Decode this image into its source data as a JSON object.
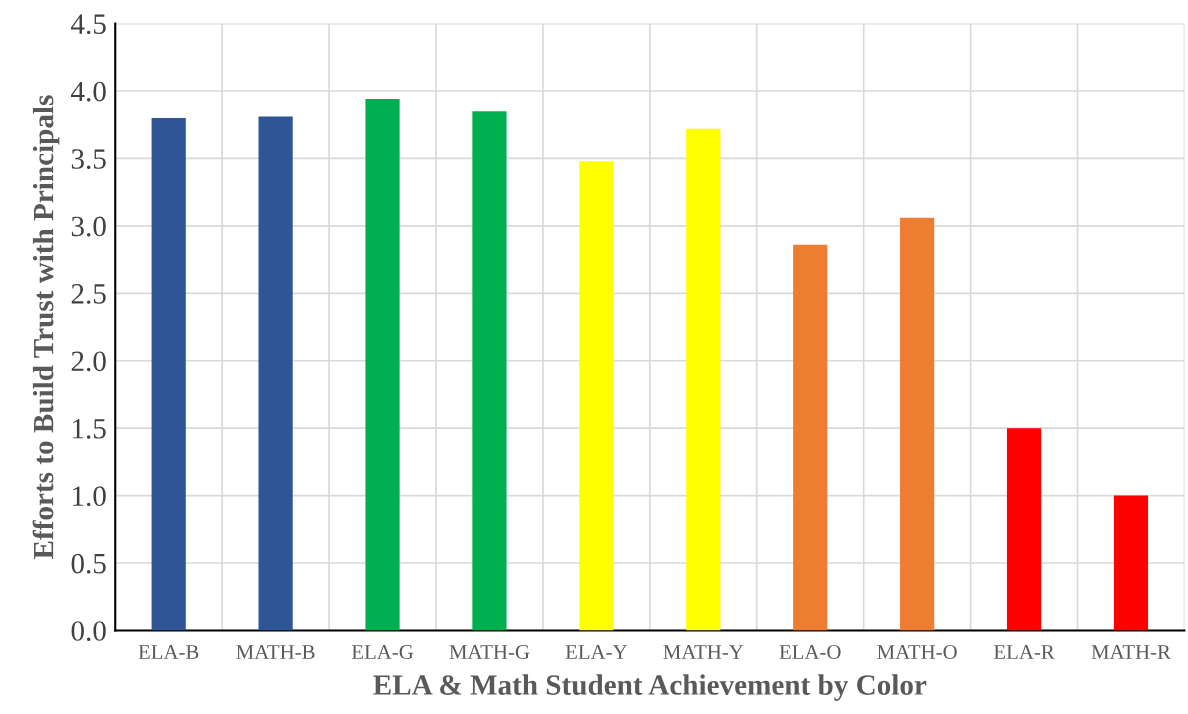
{
  "chart_data": {
    "type": "bar",
    "xlabel": "ELA & Math Student Achievement by Color",
    "ylabel": "Efforts to Build Trust with Principals",
    "categories": [
      "ELA-B",
      "MATH-B",
      "ELA-G",
      "MATH-G",
      "ELA-Y",
      "MATH-Y",
      "ELA-O",
      "MATH-O",
      "ELA-R",
      "MATH-R"
    ],
    "values": [
      3.8,
      3.81,
      3.94,
      3.85,
      3.48,
      3.72,
      2.86,
      3.06,
      1.5,
      1.0
    ],
    "colors": [
      "#2f5597",
      "#2f5597",
      "#00b050",
      "#00b050",
      "#ffff00",
      "#ffff00",
      "#ed7d31",
      "#ed7d31",
      "#ff0000",
      "#ff0000"
    ],
    "ylim": [
      0,
      4.5
    ],
    "yticks": [
      {
        "value": 0,
        "label": "0.0"
      },
      {
        "value": 0.5,
        "label": "0.5"
      },
      {
        "value": 1,
        "label": "1.0"
      },
      {
        "value": 1.5,
        "label": "1.5"
      },
      {
        "value": 2,
        "label": "2.0"
      },
      {
        "value": 2.5,
        "label": "2.5"
      },
      {
        "value": 3,
        "label": "3.0"
      },
      {
        "value": 3.5,
        "label": "3.5"
      },
      {
        "value": 4,
        "label": "4.0"
      },
      {
        "value": 4.5,
        "label": "4.5"
      }
    ],
    "grid": true
  }
}
